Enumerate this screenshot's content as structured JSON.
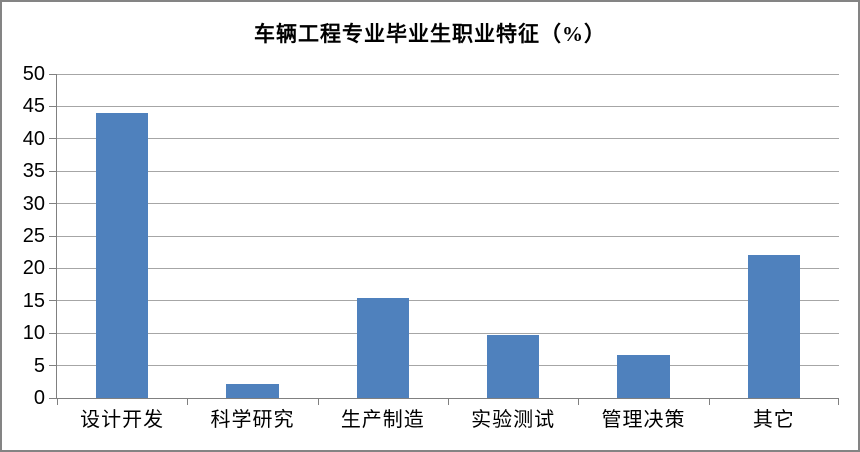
{
  "chart_data": {
    "type": "bar",
    "title": "车辆工程专业毕业生职业特征（%）",
    "categories": [
      "设计开发",
      "科学研究",
      "生产制造",
      "实验测试",
      "管理决策",
      "其它"
    ],
    "values": [
      44,
      2.2,
      15.4,
      9.8,
      6.6,
      22
    ],
    "xlabel": "",
    "ylabel": "",
    "ylim": [
      0,
      50
    ],
    "y_ticks": [
      0,
      5,
      10,
      15,
      20,
      25,
      30,
      35,
      40,
      45,
      50
    ],
    "grid": true,
    "legend_position": "none",
    "bar_color": "#4F81BD",
    "gridline_color": "#A6A6A6",
    "axis_color": "#808080",
    "frame_border_color": "#848484",
    "background_color": "#FFFFFF",
    "bar_fraction_of_slot": 0.4
  }
}
